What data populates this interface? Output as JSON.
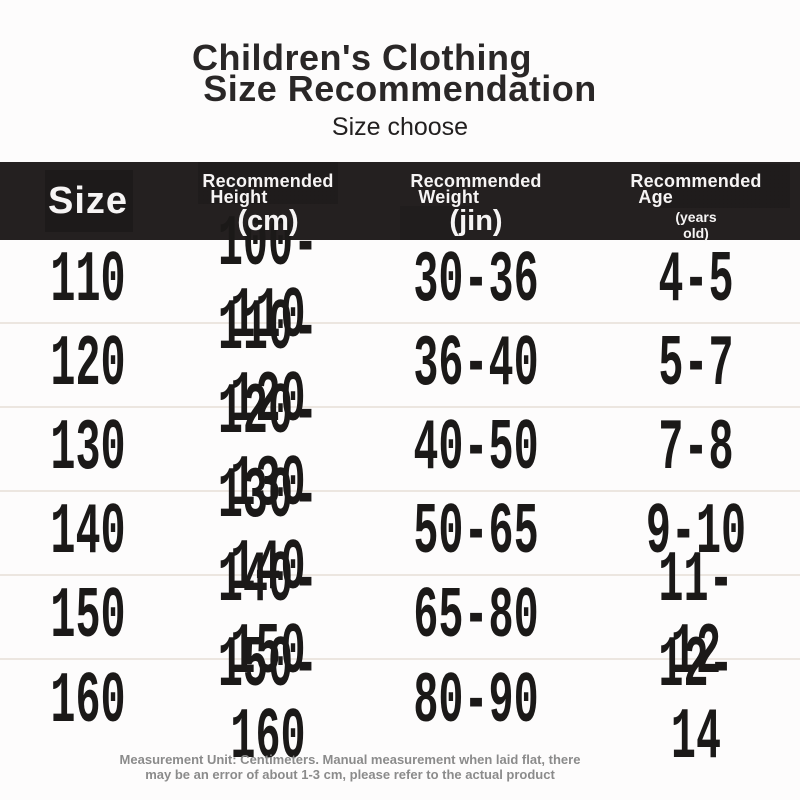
{
  "title": {
    "line1": "Children's Clothing",
    "line2": "Size Recommendation",
    "subtitle": "Size choose"
  },
  "header_bar": {
    "background_color": "#242020",
    "text_color": "#f6f4f4",
    "size_label": "Size",
    "columns": [
      {
        "line1": "Recommended",
        "line2": "Height",
        "unit": "(cm)"
      },
      {
        "line1": "Recommended",
        "line2": "Weight",
        "unit": "(jin)"
      },
      {
        "line1": "Recommended",
        "line2": "Age",
        "unit": "(years old)"
      }
    ]
  },
  "footer": {
    "note": "Measurement Unit: Centimeters. Manual measurement when laid flat, there may be an error of about 1-3 cm, please refer to the actual product",
    "text_color": "#8b8b8b"
  },
  "colors": {
    "page_background": "#fdfcfc",
    "body_text": "#1b1918",
    "row_divider": "#ece6e0"
  },
  "chart_data": {
    "type": "table",
    "title": "Children's Clothing Size Recommendation",
    "subtitle": "Size choose",
    "columns": [
      "Size",
      "Recommended Height (cm)",
      "Recommended Weight (jin)",
      "Recommended Age (years old)"
    ],
    "rows": [
      [
        "110",
        "100-110",
        "30-36",
        "4-5"
      ],
      [
        "120",
        "110-120",
        "36-40",
        "5-7"
      ],
      [
        "130",
        "120-130",
        "40-50",
        "7-8"
      ],
      [
        "140",
        "130-140",
        "50-65",
        "9-10"
      ],
      [
        "150",
        "140-150",
        "65-80",
        "11-12"
      ],
      [
        "160",
        "150-160",
        "80-90",
        "12-14"
      ]
    ],
    "note": "Measurement Unit: Centimeters. Manual measurement when laid flat, there may be an error of about 1-3 cm, please refer to the actual product"
  }
}
